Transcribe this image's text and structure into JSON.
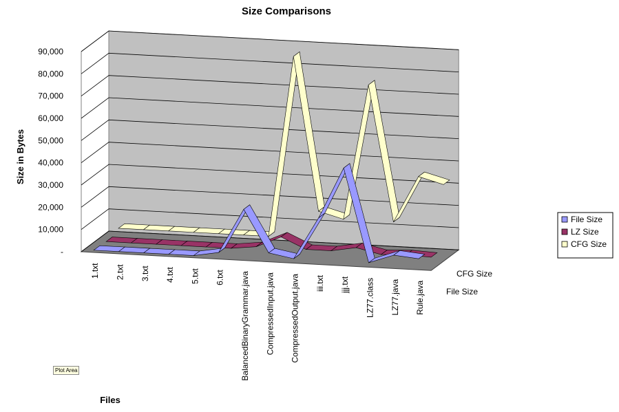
{
  "chart_data": {
    "type": "line",
    "subtype": "3d-line",
    "title": "Size Comparisons",
    "xlabel": "Files",
    "ylabel": "Size in Bytes",
    "ylim": [
      0,
      90000
    ],
    "yticks": [
      "-",
      "10,000",
      "20,000",
      "30,000",
      "40,000",
      "50,000",
      "60,000",
      "70,000",
      "80,000",
      "90,000"
    ],
    "categories": [
      "1.txt",
      "2.txt",
      "3.txt",
      "4.txt",
      "5.txt",
      "6.txt",
      "BalancedBinaryGrammar.java",
      "CompressedInput.java",
      "CompressedOutput.java",
      "iii.txt",
      "jjj.txt",
      "LZ77.class",
      "LZ77.java",
      "Rule.java"
    ],
    "depth_labels": [
      "CFG Size",
      "File Size"
    ],
    "grid": true,
    "legend_position": "right",
    "series": [
      {
        "name": "File Size",
        "color": "#9999ff",
        "values": [
          1000,
          1000,
          1000,
          1000,
          1000,
          3000,
          23000,
          4000,
          2000,
          21000,
          44000,
          2000,
          6000,
          5000
        ]
      },
      {
        "name": "LZ Size",
        "color": "#993366",
        "values": [
          700,
          700,
          700,
          700,
          700,
          700,
          2000,
          7000,
          2000,
          2000,
          4000,
          1500,
          2000,
          1500
        ]
      },
      {
        "name": "CFG Size",
        "color": "#ffffcc",
        "values": [
          2500,
          2500,
          2500,
          2500,
          2500,
          2500,
          2500,
          84000,
          15000,
          12000,
          73000,
          12000,
          33000,
          30000
        ]
      }
    ]
  },
  "ui": {
    "tooltip_label": "Plot Area"
  }
}
